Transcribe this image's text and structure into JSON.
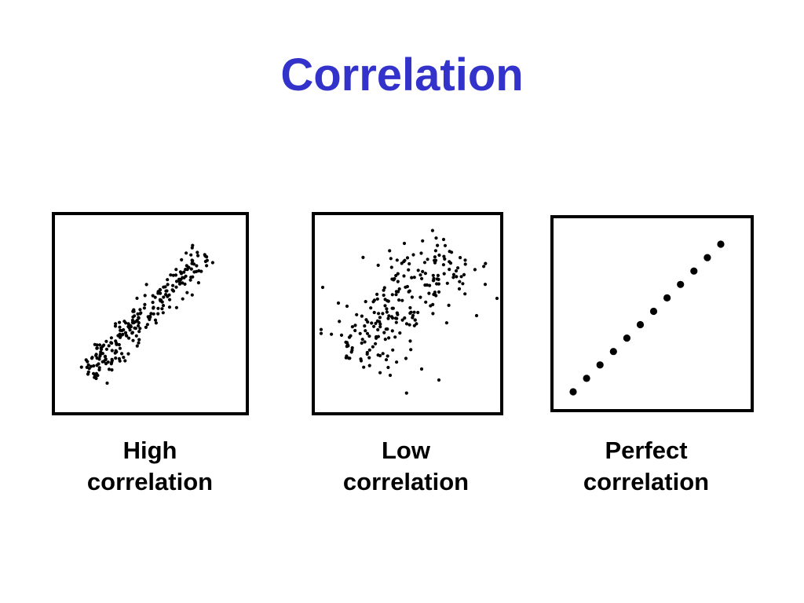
{
  "title": "Correlation",
  "colors": {
    "title": "#3333cc",
    "ink": "#000000",
    "background": "#ffffff"
  },
  "panels": [
    {
      "id": "high",
      "caption_line1": "High",
      "caption_line2": "correlation",
      "trend": "strong positive",
      "point_count": 240
    },
    {
      "id": "low",
      "caption_line1": "Low",
      "caption_line2": "correlation",
      "trend": "weak positive",
      "point_count": 230
    },
    {
      "id": "perfect",
      "caption_line1": "Perfect",
      "caption_line2": "correlation",
      "trend": "perfect positive",
      "point_count": 12
    }
  ]
}
